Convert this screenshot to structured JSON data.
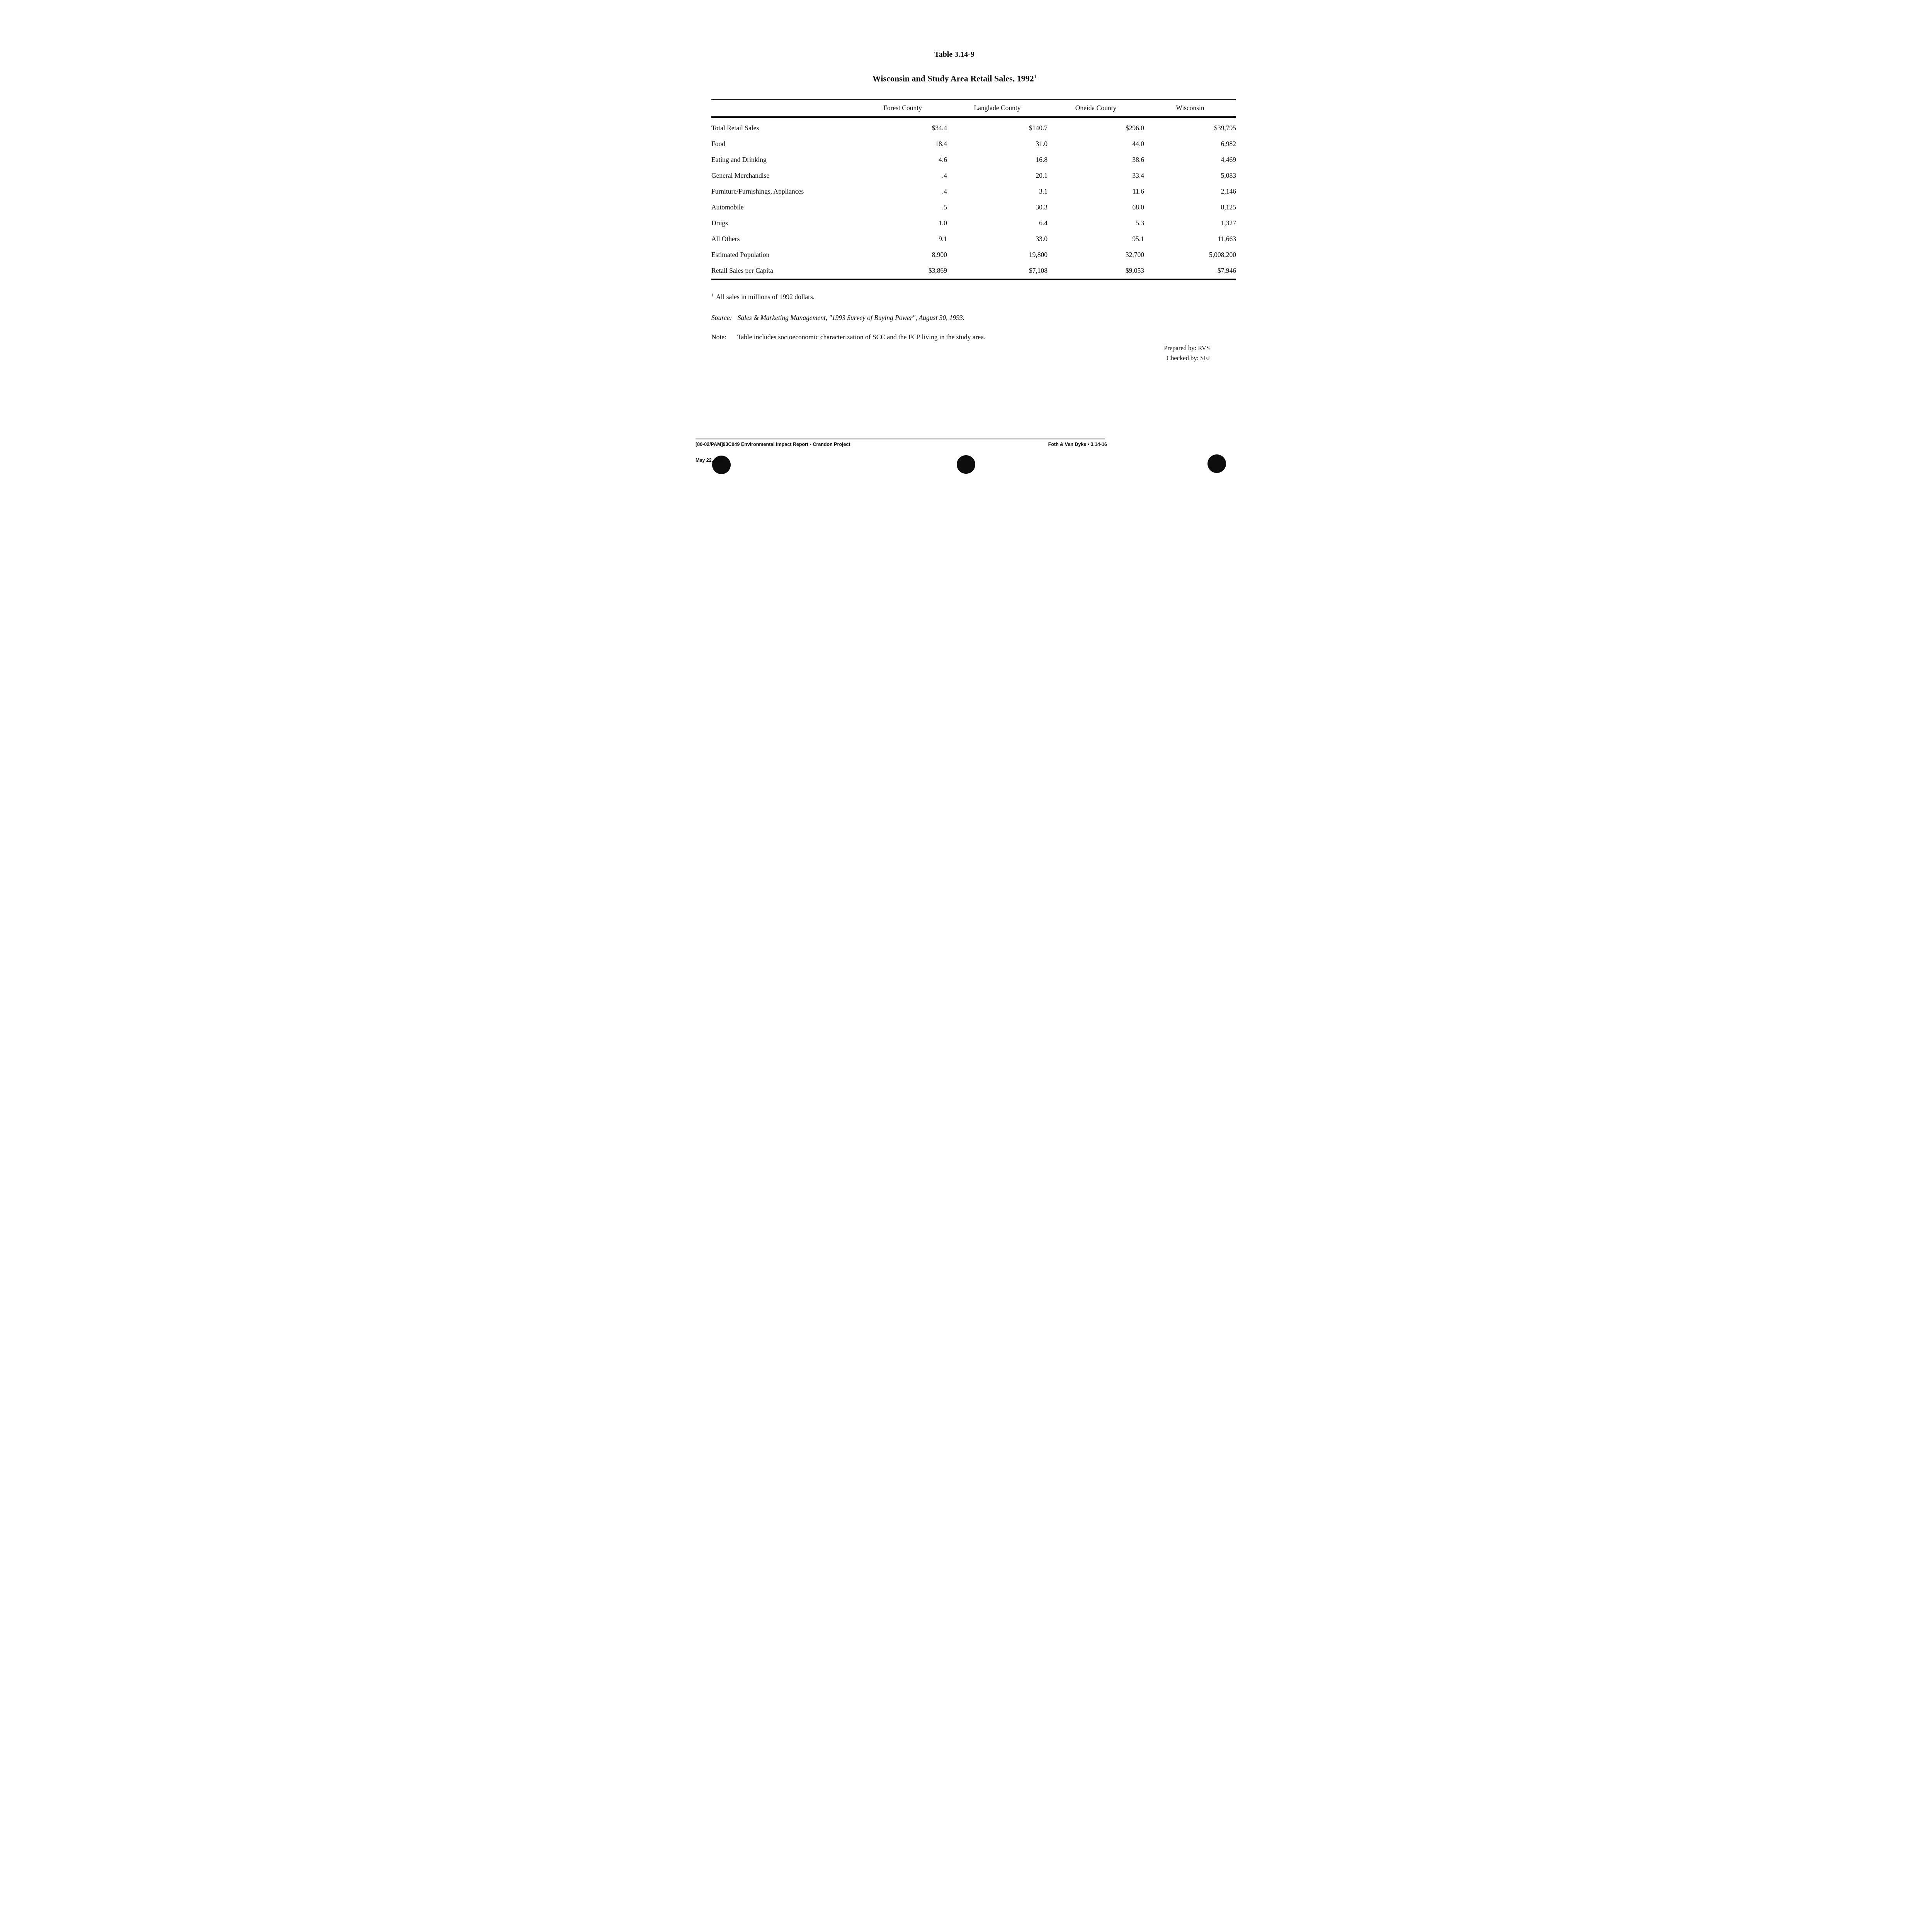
{
  "header": {
    "title": "Table 3.14-9",
    "subtitle": "Wisconsin and Study Area Retail Sales, 1992",
    "footnote_marker": "1"
  },
  "table": {
    "columns": [
      "",
      "Forest County",
      "Langlade County",
      "Oneida County",
      "Wisconsin"
    ],
    "rows": [
      {
        "label": "Total Retail Sales",
        "values": [
          "$34.4",
          "$140.7",
          "$296.0",
          "$39,795"
        ]
      },
      {
        "label": "Food",
        "values": [
          "18.4",
          "31.0",
          "44.0",
          "6,982"
        ]
      },
      {
        "label": "Eating and Drinking",
        "values": [
          "4.6",
          "16.8",
          "38.6",
          "4,469"
        ]
      },
      {
        "label": "General Merchandise",
        "values": [
          ".4",
          "20.1",
          "33.4",
          "5,083"
        ]
      },
      {
        "label": "Furniture/Furnishings, Appliances",
        "values": [
          ".4",
          "3.1",
          "11.6",
          "2,146"
        ]
      },
      {
        "label": "Automobile",
        "values": [
          ".5",
          "30.3",
          "68.0",
          "8,125"
        ]
      },
      {
        "label": "Drugs",
        "values": [
          "1.0",
          "6.4",
          "5.3",
          "1,327"
        ]
      },
      {
        "label": "All Others",
        "values": [
          "9.1",
          "33.0",
          "95.1",
          "11,663"
        ]
      },
      {
        "label": "Estimated Population",
        "values": [
          "8,900",
          "19,800",
          "32,700",
          "5,008,200"
        ]
      },
      {
        "label": "Retail Sales per Capita",
        "values": [
          "$3,869",
          "$7,108",
          "$9,053",
          "$7,946"
        ]
      }
    ]
  },
  "notes": {
    "footnote_marker": "1",
    "footnote_text": "All sales in millions of 1992 dollars.",
    "source_label": "Source:",
    "source_text": "Sales & Marketing Management, \"1993 Survey of Buying Power\", August 30, 1993.",
    "note_label": "Note:",
    "note_text": "Table includes socioeconomic characterization of SCC and the FCP living in the study area.",
    "prepared_by": "Prepared by: RVS",
    "checked_by": "Checked by: SFJ"
  },
  "footer": {
    "doc_ref": "[80-02/PAM]93C049  Environmental Impact Report - Crandon Project",
    "date": "May 22, 1995",
    "right": "Foth & Van Dyke • 3.14-16"
  }
}
